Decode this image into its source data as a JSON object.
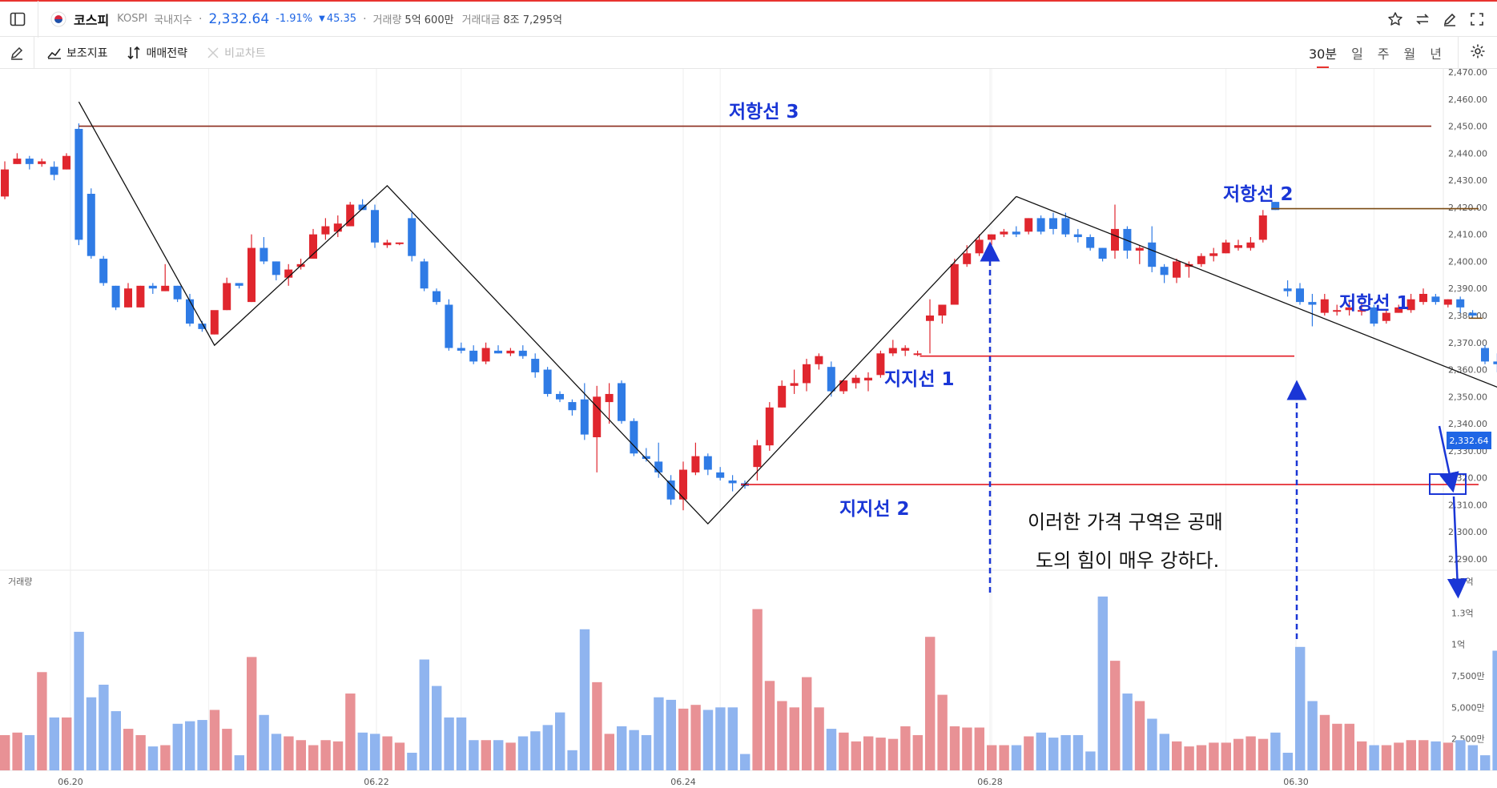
{
  "header": {
    "flag_icon": "korea-flag-icon",
    "name": "코스피",
    "code": "KOSPI",
    "market": "국내지수",
    "dot": "·",
    "price": "2,332.64",
    "change_pct": "-1.91%",
    "change_abs": "45.35",
    "volume_label": "거래량",
    "volume_value": "5억 600만",
    "amount_label": "거래대금",
    "amount_value": "8조 7,295억",
    "price_color": "#1f66e5"
  },
  "toolbar": {
    "indicator": "보조지표",
    "strategy": "매매전략",
    "compare": "비교차트",
    "timeframes": [
      "30분",
      "일",
      "주",
      "월",
      "년"
    ],
    "active_timeframe": "30분"
  },
  "chart_data": {
    "type": "candlestick",
    "up_color": "#e0262e",
    "down_color": "#2f7be5",
    "ylim": [
      2282,
      2472
    ],
    "y_ticks": [
      "2,470.00",
      "2,460.00",
      "2,450.00",
      "2,440.00",
      "2,430.00",
      "2,420.00",
      "2,410.00",
      "2,400.00",
      "2,390.00",
      "2,380.00",
      "2,370.00",
      "2,360.00",
      "2,350.00",
      "2,340.00",
      "2,330.00",
      "2,320.00",
      "2,310.00",
      "2,300.00",
      "2,290.00"
    ],
    "x_ticks": [
      "06.20",
      "06.22",
      "06.24",
      "06.28",
      "06.30"
    ],
    "last_price_label": "2,332.64",
    "volume_panel_label": "거래량",
    "volume_ticks": [
      "1.5억",
      "1.3억",
      "1억",
      "7,500만",
      "5,000만",
      "2,500만"
    ],
    "volume_max": 1.5,
    "candles": [
      {
        "o": 2424,
        "h": 2437,
        "l": 2423,
        "c": 2434
      },
      {
        "o": 2436,
        "h": 2440,
        "l": 2436,
        "c": 2438
      },
      {
        "o": 2438,
        "h": 2439,
        "l": 2434,
        "c": 2436
      },
      {
        "o": 2436,
        "h": 2438,
        "l": 2435,
        "c": 2437
      },
      {
        "o": 2435,
        "h": 2437,
        "l": 2430,
        "c": 2432
      },
      {
        "o": 2434,
        "h": 2440,
        "l": 2434,
        "c": 2439
      },
      {
        "o": 2449,
        "h": 2451,
        "l": 2406,
        "c": 2408
      },
      {
        "o": 2425,
        "h": 2427,
        "l": 2401,
        "c": 2402
      },
      {
        "o": 2401,
        "h": 2402,
        "l": 2391,
        "c": 2392
      },
      {
        "o": 2391,
        "h": 2391,
        "l": 2382,
        "c": 2383
      },
      {
        "o": 2383,
        "h": 2392,
        "l": 2383,
        "c": 2390
      },
      {
        "o": 2383,
        "h": 2391,
        "l": 2383,
        "c": 2391
      },
      {
        "o": 2391,
        "h": 2392,
        "l": 2388,
        "c": 2390
      },
      {
        "o": 2389,
        "h": 2399,
        "l": 2389,
        "c": 2391
      },
      {
        "o": 2391,
        "h": 2391,
        "l": 2385,
        "c": 2386
      },
      {
        "o": 2386,
        "h": 2388,
        "l": 2376,
        "c": 2377
      },
      {
        "o": 2377,
        "h": 2378,
        "l": 2374,
        "c": 2375
      },
      {
        "o": 2373,
        "h": 2381,
        "l": 2373,
        "c": 2382
      },
      {
        "o": 2382,
        "h": 2394,
        "l": 2382,
        "c": 2392
      },
      {
        "o": 2392,
        "h": 2392,
        "l": 2390,
        "c": 2391
      },
      {
        "o": 2385,
        "h": 2410,
        "l": 2385,
        "c": 2405
      },
      {
        "o": 2405,
        "h": 2409,
        "l": 2399,
        "c": 2400
      },
      {
        "o": 2400,
        "h": 2400,
        "l": 2393,
        "c": 2395
      },
      {
        "o": 2394,
        "h": 2399,
        "l": 2391,
        "c": 2397
      },
      {
        "o": 2398,
        "h": 2401,
        "l": 2397,
        "c": 2399
      },
      {
        "o": 2401,
        "h": 2412,
        "l": 2401,
        "c": 2410
      },
      {
        "o": 2410,
        "h": 2416,
        "l": 2408,
        "c": 2413
      },
      {
        "o": 2411,
        "h": 2417,
        "l": 2409,
        "c": 2414
      },
      {
        "o": 2413,
        "h": 2422,
        "l": 2413,
        "c": 2421
      },
      {
        "o": 2421,
        "h": 2423,
        "l": 2420,
        "c": 2419
      },
      {
        "o": 2419,
        "h": 2421,
        "l": 2405,
        "c": 2407
      },
      {
        "o": 2406,
        "h": 2408,
        "l": 2405,
        "c": 2407
      },
      {
        "o": 2407,
        "h": 2407,
        "l": 2406,
        "c": 2407
      },
      {
        "o": 2416,
        "h": 2418,
        "l": 2400,
        "c": 2402
      },
      {
        "o": 2400,
        "h": 2401,
        "l": 2389,
        "c": 2390
      },
      {
        "o": 2389,
        "h": 2390,
        "l": 2384,
        "c": 2385
      },
      {
        "o": 2384,
        "h": 2386,
        "l": 2367,
        "c": 2368
      },
      {
        "o": 2368,
        "h": 2370,
        "l": 2366,
        "c": 2367
      },
      {
        "o": 2367,
        "h": 2369,
        "l": 2362,
        "c": 2363
      },
      {
        "o": 2363,
        "h": 2370,
        "l": 2362,
        "c": 2368
      },
      {
        "o": 2367,
        "h": 2369,
        "l": 2366,
        "c": 2366
      },
      {
        "o": 2366,
        "h": 2368,
        "l": 2365,
        "c": 2367
      },
      {
        "o": 2367,
        "h": 2369,
        "l": 2364,
        "c": 2365
      },
      {
        "o": 2364,
        "h": 2366,
        "l": 2357,
        "c": 2359
      },
      {
        "o": 2360,
        "h": 2361,
        "l": 2350,
        "c": 2351
      },
      {
        "o": 2351,
        "h": 2352,
        "l": 2348,
        "c": 2349
      },
      {
        "o": 2348,
        "h": 2349,
        "l": 2343,
        "c": 2345
      },
      {
        "o": 2349,
        "h": 2355,
        "l": 2334,
        "c": 2336
      },
      {
        "o": 2335,
        "h": 2354,
        "l": 2322,
        "c": 2350
      },
      {
        "o": 2348,
        "h": 2355,
        "l": 2340,
        "c": 2351
      },
      {
        "o": 2355,
        "h": 2356,
        "l": 2340,
        "c": 2341
      },
      {
        "o": 2341,
        "h": 2342,
        "l": 2328,
        "c": 2329
      },
      {
        "o": 2328,
        "h": 2331,
        "l": 2326,
        "c": 2327
      },
      {
        "o": 2326,
        "h": 2333,
        "l": 2320,
        "c": 2322
      },
      {
        "o": 2319,
        "h": 2321,
        "l": 2310,
        "c": 2312
      },
      {
        "o": 2312,
        "h": 2326,
        "l": 2308,
        "c": 2323
      },
      {
        "o": 2322,
        "h": 2333,
        "l": 2321,
        "c": 2328
      },
      {
        "o": 2328,
        "h": 2329,
        "l": 2321,
        "c": 2323
      },
      {
        "o": 2322,
        "h": 2324,
        "l": 2319,
        "c": 2320
      },
      {
        "o": 2319,
        "h": 2321,
        "l": 2315,
        "c": 2318
      },
      {
        "o": 2318,
        "h": 2319,
        "l": 2316,
        "c": 2317
      },
      {
        "o": 2324,
        "h": 2334,
        "l": 2319,
        "c": 2332
      },
      {
        "o": 2332,
        "h": 2348,
        "l": 2330,
        "c": 2346
      },
      {
        "o": 2346,
        "h": 2356,
        "l": 2346,
        "c": 2354
      },
      {
        "o": 2354,
        "h": 2360,
        "l": 2351,
        "c": 2355
      },
      {
        "o": 2355,
        "h": 2364,
        "l": 2352,
        "c": 2362
      },
      {
        "o": 2362,
        "h": 2366,
        "l": 2360,
        "c": 2365
      },
      {
        "o": 2361,
        "h": 2363,
        "l": 2350,
        "c": 2352
      },
      {
        "o": 2352,
        "h": 2356,
        "l": 2351,
        "c": 2356
      },
      {
        "o": 2355,
        "h": 2358,
        "l": 2353,
        "c": 2357
      },
      {
        "o": 2356,
        "h": 2359,
        "l": 2352,
        "c": 2357
      },
      {
        "o": 2358,
        "h": 2367,
        "l": 2357,
        "c": 2366
      },
      {
        "o": 2366,
        "h": 2371,
        "l": 2365,
        "c": 2368
      },
      {
        "o": 2367,
        "h": 2369,
        "l": 2365,
        "c": 2368
      },
      {
        "o": 2366,
        "h": 2367,
        "l": 2365,
        "c": 2366
      },
      {
        "o": 2378,
        "h": 2386,
        "l": 2366,
        "c": 2380
      },
      {
        "o": 2380,
        "h": 2384,
        "l": 2377,
        "c": 2384
      },
      {
        "o": 2384,
        "h": 2401,
        "l": 2384,
        "c": 2399
      },
      {
        "o": 2399,
        "h": 2406,
        "l": 2398,
        "c": 2403
      },
      {
        "o": 2403,
        "h": 2410,
        "l": 2402,
        "c": 2408
      },
      {
        "o": 2408,
        "h": 2410,
        "l": 2406,
        "c": 2410
      },
      {
        "o": 2410,
        "h": 2412,
        "l": 2409,
        "c": 2411
      },
      {
        "o": 2411,
        "h": 2413,
        "l": 2409,
        "c": 2410
      },
      {
        "o": 2411,
        "h": 2416,
        "l": 2410,
        "c": 2416
      },
      {
        "o": 2416,
        "h": 2417,
        "l": 2410,
        "c": 2411
      },
      {
        "o": 2416,
        "h": 2418,
        "l": 2410,
        "c": 2412
      },
      {
        "o": 2416,
        "h": 2418,
        "l": 2409,
        "c": 2410
      },
      {
        "o": 2410,
        "h": 2412,
        "l": 2407,
        "c": 2409
      },
      {
        "o": 2409,
        "h": 2410,
        "l": 2404,
        "c": 2405
      },
      {
        "o": 2405,
        "h": 2405,
        "l": 2400,
        "c": 2401
      },
      {
        "o": 2404,
        "h": 2421,
        "l": 2401,
        "c": 2412
      },
      {
        "o": 2412,
        "h": 2413,
        "l": 2401,
        "c": 2404
      },
      {
        "o": 2404,
        "h": 2406,
        "l": 2399,
        "c": 2405
      },
      {
        "o": 2407,
        "h": 2413,
        "l": 2396,
        "c": 2398
      },
      {
        "o": 2398,
        "h": 2399,
        "l": 2392,
        "c": 2395
      },
      {
        "o": 2394,
        "h": 2401,
        "l": 2392,
        "c": 2400
      },
      {
        "o": 2398,
        "h": 2400,
        "l": 2394,
        "c": 2399
      },
      {
        "o": 2399,
        "h": 2403,
        "l": 2398,
        "c": 2402
      },
      {
        "o": 2402,
        "h": 2405,
        "l": 2400,
        "c": 2403
      },
      {
        "o": 2403,
        "h": 2408,
        "l": 2403,
        "c": 2407
      },
      {
        "o": 2405,
        "h": 2408,
        "l": 2404,
        "c": 2406
      },
      {
        "o": 2405,
        "h": 2409,
        "l": 2404,
        "c": 2407
      },
      {
        "o": 2408,
        "h": 2419,
        "l": 2407,
        "c": 2417
      },
      {
        "o": 2422,
        "h": 2422,
        "l": 2419,
        "c": 2419
      },
      {
        "o": 2390,
        "h": 2393,
        "l": 2387,
        "c": 2389
      },
      {
        "o": 2390,
        "h": 2392,
        "l": 2384,
        "c": 2385
      },
      {
        "o": 2385,
        "h": 2388,
        "l": 2376,
        "c": 2384
      },
      {
        "o": 2381,
        "h": 2388,
        "l": 2380,
        "c": 2386
      },
      {
        "o": 2382,
        "h": 2384,
        "l": 2380,
        "c": 2382
      },
      {
        "o": 2382,
        "h": 2385,
        "l": 2380,
        "c": 2383
      },
      {
        "o": 2382,
        "h": 2385,
        "l": 2380,
        "c": 2382
      },
      {
        "o": 2383,
        "h": 2384,
        "l": 2376,
        "c": 2377
      },
      {
        "o": 2378,
        "h": 2382,
        "l": 2377,
        "c": 2381
      },
      {
        "o": 2381,
        "h": 2384,
        "l": 2381,
        "c": 2383
      },
      {
        "o": 2382,
        "h": 2388,
        "l": 2381,
        "c": 2386
      },
      {
        "o": 2385,
        "h": 2390,
        "l": 2384,
        "c": 2388
      },
      {
        "o": 2387,
        "h": 2388,
        "l": 2384,
        "c": 2385
      },
      {
        "o": 2384,
        "h": 2386,
        "l": 2383,
        "c": 2386
      },
      {
        "o": 2386,
        "h": 2387,
        "l": 2381,
        "c": 2383
      },
      {
        "o": 2381,
        "h": 2382,
        "l": 2379,
        "c": 2380
      },
      {
        "o": 2368,
        "h": 2369,
        "l": 2362,
        "c": 2363
      },
      {
        "o": 2363,
        "h": 2366,
        "l": 2359,
        "c": 2362
      },
      {
        "o": 2361,
        "h": 2364,
        "l": 2350,
        "c": 2352
      },
      {
        "o": 2355,
        "h": 2359,
        "l": 2354,
        "c": 2356
      },
      {
        "o": 2355,
        "h": 2362,
        "l": 2353,
        "c": 2360
      },
      {
        "o": 2360,
        "h": 2363,
        "l": 2358,
        "c": 2363
      },
      {
        "o": 2363,
        "h": 2364,
        "l": 2360,
        "c": 2361
      },
      {
        "o": 2361,
        "h": 2362,
        "l": 2356,
        "c": 2357
      },
      {
        "o": 2356,
        "h": 2357,
        "l": 2353,
        "c": 2354
      },
      {
        "o": 2356,
        "h": 2357,
        "l": 2354,
        "c": 2355
      },
      {
        "o": 2354,
        "h": 2355,
        "l": 2347,
        "c": 2348
      },
      {
        "o": 2347,
        "h": 2352,
        "l": 2344,
        "c": 2346
      },
      {
        "o": 2346,
        "h": 2347,
        "l": 2343,
        "c": 2344
      },
      {
        "o": 2343,
        "h": 2345,
        "l": 2339,
        "c": 2340
      },
      {
        "o": 2340,
        "h": 2342,
        "l": 2338,
        "c": 2339
      },
      {
        "o": 2337,
        "h": 2338,
        "l": 2332,
        "c": 2333
      }
    ],
    "volumes": [
      0.28,
      0.3,
      0.28,
      0.78,
      0.42,
      0.42,
      1.1,
      0.58,
      0.68,
      0.47,
      0.33,
      0.28,
      0.19,
      0.2,
      0.37,
      0.39,
      0.4,
      0.48,
      0.33,
      0.12,
      0.9,
      0.44,
      0.29,
      0.27,
      0.24,
      0.2,
      0.24,
      0.23,
      0.61,
      0.3,
      0.29,
      0.27,
      0.22,
      0.14,
      0.88,
      0.67,
      0.42,
      0.42,
      0.24,
      0.24,
      0.24,
      0.22,
      0.27,
      0.31,
      0.36,
      0.46,
      0.16,
      1.12,
      0.7,
      0.29,
      0.35,
      0.32,
      0.28,
      0.58,
      0.56,
      0.49,
      0.52,
      0.48,
      0.5,
      0.5,
      0.13,
      1.28,
      0.71,
      0.55,
      0.5,
      0.74,
      0.5,
      0.33,
      0.3,
      0.23,
      0.27,
      0.26,
      0.25,
      0.35,
      0.28,
      1.06,
      0.6,
      0.35,
      0.34,
      0.34,
      0.2,
      0.2,
      0.2,
      0.27,
      0.3,
      0.26,
      0.28,
      0.28,
      0.15,
      1.38,
      0.87,
      0.61,
      0.55,
      0.41,
      0.29,
      0.23,
      0.19,
      0.2,
      0.22,
      0.22,
      0.25,
      0.27,
      0.25,
      0.3,
      0.14,
      0.98,
      0.55,
      0.44,
      0.37,
      0.37,
      0.23,
      0.2,
      0.2,
      0.22,
      0.24,
      0.24,
      0.23,
      0.22,
      0.24,
      0.2,
      0.12,
      0.95,
      0.65,
      0.5,
      0.34,
      0.22,
      0.19,
      0.2,
      0.2,
      0.25,
      0.27,
      0.37,
      0.62,
      0.45,
      0.47,
      0.33,
      0.2
    ]
  },
  "annotations": {
    "resistance_3": "저항선 3",
    "resistance_2": "저항선 2",
    "resistance_1": "저항선 1",
    "support_1": "지지선 1",
    "support_2": "지지선 2",
    "note_line1": "이러한 가격 구역은 공매",
    "note_line2": "도의 힘이 매우 강하다.",
    "resistance_3_value": 2450,
    "resistance_2_value": 2419.5,
    "resistance_1_value": 2379,
    "support_1_value": 2365,
    "support_2_value": 2317.5,
    "zigzag": [
      [
        6,
        2459
      ],
      [
        17,
        2369
      ],
      [
        31,
        2428
      ],
      [
        57,
        2303
      ],
      [
        82,
        2424
      ]
    ],
    "downtrend_line": [
      [
        82,
        2424
      ],
      [
        134,
        2330
      ]
    ],
    "annotation_color": "#1a36d6"
  }
}
